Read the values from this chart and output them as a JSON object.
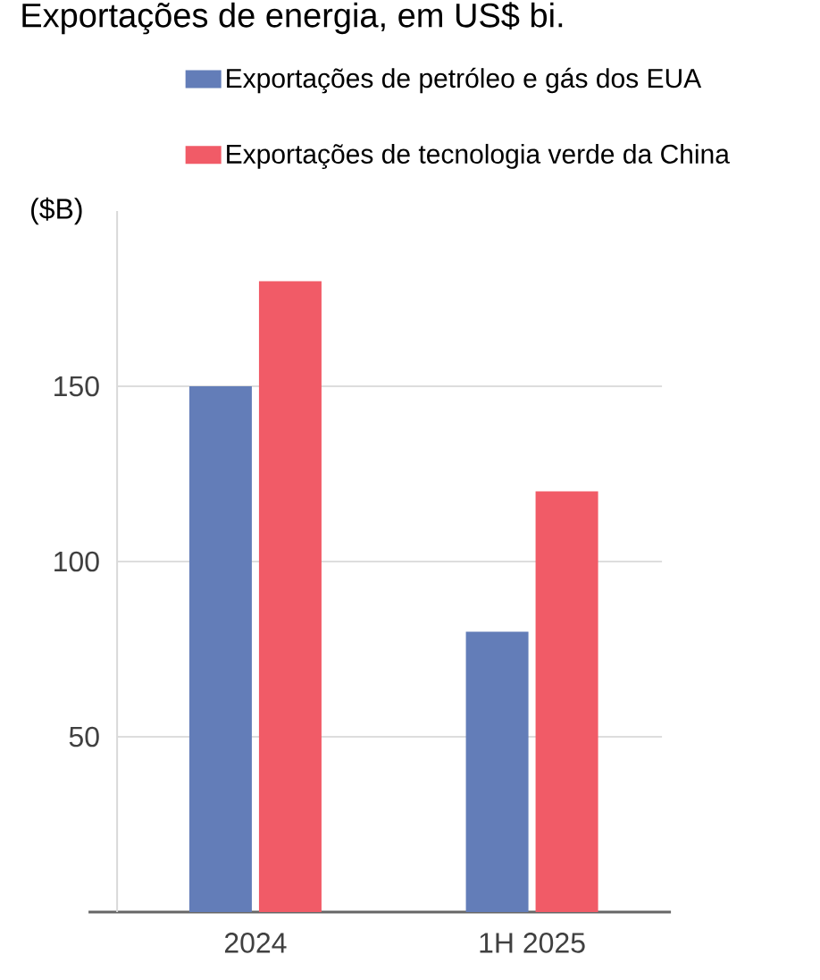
{
  "chart_data": {
    "type": "bar",
    "title": "Exportações de energia, em US$ bi.",
    "ylabel": "($B)",
    "categories": [
      "2024",
      "1H 2025"
    ],
    "series": [
      {
        "name": "Exportações de petróleo e gás dos EUA",
        "color": "#637db8",
        "values": [
          150,
          80
        ]
      },
      {
        "name": "Exportações de tecnologia verde da China",
        "color": "#f15b67",
        "values": [
          180,
          120
        ]
      }
    ],
    "ylim": [
      0,
      200
    ],
    "yticks": [
      50,
      100,
      150
    ],
    "grid": "y",
    "legend": "top"
  }
}
